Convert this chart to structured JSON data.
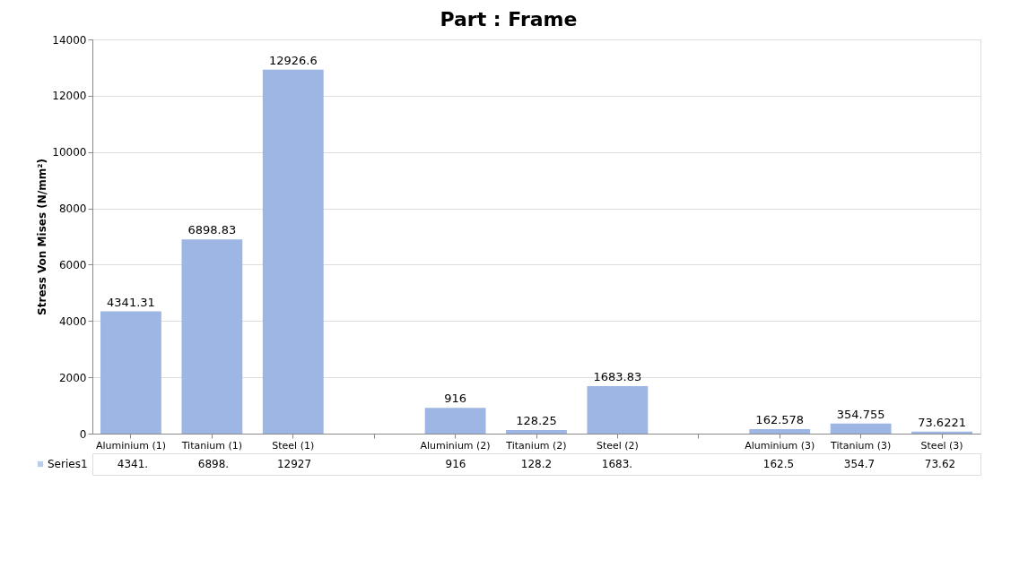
{
  "chart_data": {
    "type": "bar",
    "title": "Part : Frame",
    "ylabel": "Stress Von Mises (N/mm²)",
    "categories": [
      "Aluminium (1)",
      "Titanium (1)",
      "Steel (1)",
      null,
      "Aluminium (2)",
      "Titanium (2)",
      "Steel (2)",
      null,
      "Aluminium (3)",
      "Titanium (3)",
      "Steel (3)"
    ],
    "series": [
      {
        "name": "Series1",
        "color": "#9db6e3",
        "values": [
          4341.31,
          6898.83,
          12926.6,
          null,
          916,
          128.25,
          1683.83,
          null,
          162.578,
          354.755,
          73.6221
        ],
        "value_labels": [
          "4341.31",
          "6898.83",
          "12926.6",
          null,
          "916",
          "128.25",
          "1683.83",
          null,
          "162.578",
          "354.755",
          "73.6221"
        ]
      }
    ],
    "data_labels": true,
    "annotations": [
      "4341.",
      "6898.",
      "12927",
      "916",
      "128.2",
      "1683.",
      "162.5",
      "354.7",
      "73.62"
    ],
    "ylim": [
      0,
      14000
    ],
    "yticks": [
      0,
      2000,
      4000,
      6000,
      8000,
      10000,
      12000,
      14000
    ],
    "grid": "y",
    "legend": "bottom left"
  }
}
